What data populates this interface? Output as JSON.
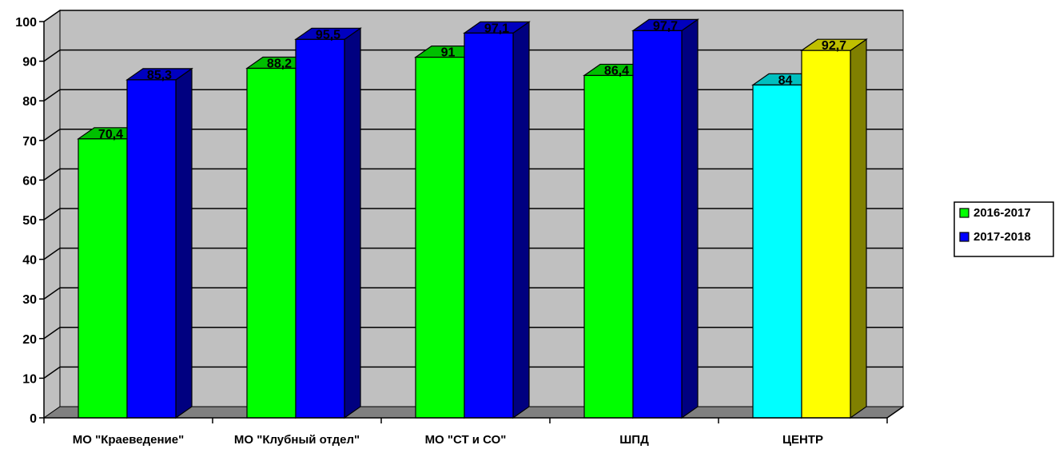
{
  "chart_data": {
    "type": "bar",
    "categories": [
      "МО \"Краеведение\"",
      "МО \"Клубный отдел\"",
      "МО \"СТ и СО\"",
      "ШПД",
      "ЦЕНТР"
    ],
    "series": [
      {
        "name": "2016-2017",
        "values": [
          70.4,
          88.2,
          91,
          86.4,
          84
        ]
      },
      {
        "name": "2017-2018",
        "values": [
          85.3,
          95.5,
          97.1,
          97.7,
          92.7
        ]
      }
    ],
    "data_labels": [
      [
        "70,4",
        "88,2",
        "91",
        "86,4",
        "84"
      ],
      [
        "85,3",
        "95,5",
        "97,1",
        "97,7",
        "92,7"
      ]
    ],
    "yticks": [
      "0",
      "10",
      "20",
      "30",
      "40",
      "50",
      "60",
      "70",
      "80",
      "90",
      "100"
    ],
    "ylim": [
      0,
      100
    ],
    "grid": true,
    "legend": "right",
    "colors": {
      "series": [
        "#00ff00",
        "#0000ff"
      ],
      "last_category": [
        "#00ffff",
        "#ffff00"
      ],
      "wall": "#c0c0c0",
      "floor": "#808080"
    }
  }
}
